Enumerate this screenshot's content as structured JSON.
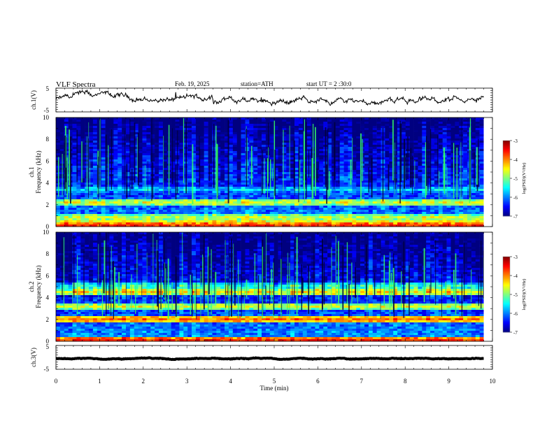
{
  "header": {
    "title": "VLF  Spectra",
    "date": "Feb. 19, 2025",
    "station": "station=ATH",
    "start": "start  UT  =   2  :30:0"
  },
  "chart_data": [
    {
      "type": "line",
      "name": "ch1-voltage",
      "ylabel": "ch.1(V)",
      "xlim": [
        0,
        10
      ],
      "ylim": [
        -5,
        5
      ],
      "y_ticks": [
        "5",
        "-5"
      ],
      "baseline": 0.2,
      "series_color": "#000000"
    },
    {
      "type": "heatmap",
      "name": "ch1-spectrogram",
      "ylabel_line1": "ch.1",
      "ylabel_line2": "Frequency  (kHz)",
      "xlim": [
        0,
        10
      ],
      "ylim": [
        0,
        10
      ],
      "y_ticks": [
        "0",
        "2",
        "4",
        "6",
        "8",
        "10"
      ],
      "colorbar": {
        "label": "log(PSD)(V²/Hz)",
        "range": [
          -7,
          -3
        ],
        "ticks": [
          "-3",
          "-4",
          "-5",
          "-6",
          "-7"
        ]
      },
      "bands": [
        {
          "freq": 0.1,
          "level": -3.6
        },
        {
          "freq": 0.4,
          "level": -4.4
        },
        {
          "freq": 0.8,
          "level": -4.6
        },
        {
          "freq": 2.2,
          "level": -4.6
        },
        {
          "freq": 3.4,
          "level": -5.6
        }
      ]
    },
    {
      "type": "heatmap",
      "name": "ch2-spectrogram",
      "ylabel_line1": "ch.2",
      "ylabel_line2": "Frequency  (kHz)",
      "xlim": [
        0,
        10
      ],
      "ylim": [
        0,
        10
      ],
      "y_ticks": [
        "0",
        "2",
        "4",
        "6",
        "8",
        "10"
      ],
      "colorbar": {
        "label": "log(PSD)(V²/Hz)",
        "range": [
          -7,
          -3
        ],
        "ticks": [
          "-3",
          "-4",
          "-5",
          "-6",
          "-7"
        ]
      },
      "bands": [
        {
          "freq": 0.1,
          "level": -3.6
        },
        {
          "freq": 2.0,
          "level": -3.9
        },
        {
          "freq": 3.2,
          "level": -4.6
        },
        {
          "freq": 4.5,
          "level": -4.4
        },
        {
          "freq": 5.0,
          "level": -5.2
        }
      ]
    },
    {
      "type": "line",
      "name": "ch3-voltage",
      "ylabel": "ch.3(V)",
      "xlim": [
        0,
        10
      ],
      "ylim": [
        -5,
        5
      ],
      "y_ticks": [
        "5",
        "-5"
      ],
      "baseline": -0.6,
      "series_color": "#000000"
    }
  ],
  "x_axis": {
    "label": "Time  (min)",
    "ticks": [
      "0",
      "1",
      "2",
      "3",
      "4",
      "5",
      "6",
      "7",
      "8",
      "9",
      "10"
    ],
    "data_end": 9.8
  }
}
